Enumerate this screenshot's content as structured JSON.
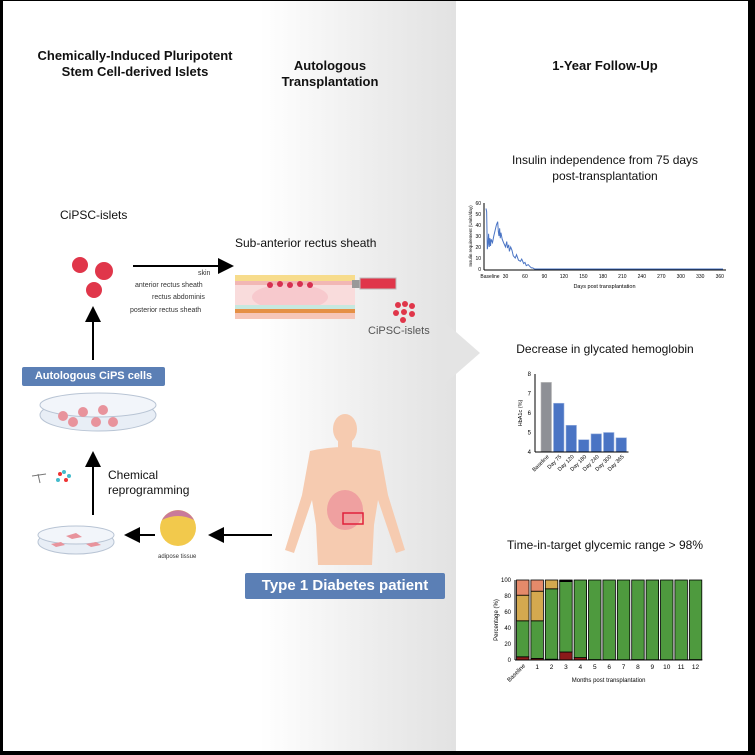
{
  "headings": {
    "col1": "Chemically-Induced Pluripotent\nStem Cell-derived Islets",
    "col2": "Autologous\nTransplantation",
    "col3": "1-Year Follow-Up"
  },
  "labels": {
    "cipsc_islets": "CiPSC-islets",
    "sub_anterior": "Sub-anterior rectus sheath",
    "skin": "skin",
    "anterior": "anterior rectus sheath",
    "rectus": "rectus abdominis",
    "posterior": "posterior rectus sheath",
    "cipsc_islets2": "CiPSC-islets",
    "autologous_cells": "Autologous CiPS cells",
    "chemical": "Chemical\nreprogramming",
    "adipose": "adipose tissue",
    "patient": "Type 1 Diabetes patient"
  },
  "colors": {
    "badge": "#5b7fb5",
    "line": "#4a74c4",
    "bar_baseline": "#8e9096",
    "bar": "#4a74c4",
    "tir_verylow": "#8b1a1a",
    "tir_inrange": "#4e9a3e",
    "tir_high": "#d4a94f",
    "tir_veryhigh": "#e58a6a"
  },
  "chart_data": [
    {
      "type": "line",
      "title": "Insulin independence from 75 days\npost-transplantation",
      "xlabel": "Days post transplantation",
      "ylabel": "Insulin requirement (Units/day)",
      "xlim": [
        0,
        365
      ],
      "ylim": [
        0,
        60
      ],
      "xticks": [
        "Baseline",
        "30",
        "60",
        "90",
        "120",
        "150",
        "180",
        "210",
        "240",
        "270",
        "300",
        "330",
        "360"
      ],
      "yticks": [
        0,
        10,
        20,
        30,
        40,
        50,
        60
      ],
      "x": [
        0,
        1,
        2,
        3,
        4,
        5,
        6,
        7,
        8,
        10,
        12,
        14,
        16,
        18,
        19,
        20,
        21,
        22,
        23,
        25,
        27,
        30,
        32,
        33,
        35,
        36,
        38,
        40,
        42,
        45,
        47,
        50,
        53,
        55,
        58,
        60,
        62,
        65,
        68,
        70,
        72,
        75,
        90,
        365
      ],
      "y": [
        55,
        52,
        18,
        22,
        32,
        20,
        28,
        21,
        27,
        24,
        30,
        35,
        40,
        43,
        34,
        30,
        37,
        28,
        33,
        27,
        24,
        20,
        25,
        19,
        22,
        16,
        20,
        17,
        12,
        10,
        13,
        8,
        7,
        9,
        5,
        6,
        3,
        4,
        2,
        1,
        1,
        0,
        0,
        0
      ]
    },
    {
      "type": "bar",
      "title": "Decrease in glycated hemoglobin",
      "ylabel": "HbA1c (%)",
      "ylim": [
        4,
        8
      ],
      "yticks": [
        4,
        5,
        6,
        7,
        8
      ],
      "categories": [
        "Baseline",
        "Day 75",
        "Day 120",
        "Day 180",
        "Day 240",
        "Day 300",
        "Day 365"
      ],
      "values": [
        7.57,
        6.5,
        5.37,
        4.63,
        4.93,
        5.0,
        4.73
      ]
    },
    {
      "type": "bar",
      "stacked": true,
      "title": "Time-in-target glycemic range > 98%",
      "xlabel": "Months post transplantation",
      "ylabel": "Percentage (%)",
      "ylim": [
        0,
        100
      ],
      "yticks": [
        0,
        20,
        40,
        60,
        80,
        100
      ],
      "categories": [
        "Baseline",
        "1",
        "2",
        "3",
        "4",
        "5",
        "6",
        "7",
        "8",
        "9",
        "10",
        "11",
        "12"
      ],
      "series": [
        {
          "color_key": "tir_verylow",
          "values": [
            4,
            2,
            1,
            10,
            3,
            0.5,
            0.5,
            0.3,
            0.5,
            0.3,
            0.3,
            0.3,
            0.5
          ]
        },
        {
          "color_key": "tir_inrange",
          "values": [
            45,
            47,
            88,
            88,
            97,
            99.5,
            99.5,
            99.7,
            99.5,
            99.7,
            99.7,
            99.7,
            99.5
          ]
        },
        {
          "color_key": "tir_high",
          "values": [
            32,
            37,
            11,
            1,
            0,
            0,
            0,
            0,
            0,
            0,
            0,
            0,
            0
          ]
        },
        {
          "color_key": "tir_veryhigh",
          "values": [
            19,
            14,
            0,
            1,
            0,
            0,
            0,
            0,
            0,
            0,
            0,
            0,
            0
          ]
        }
      ]
    }
  ]
}
